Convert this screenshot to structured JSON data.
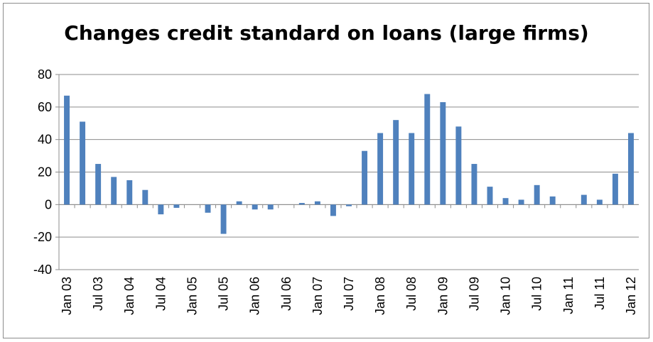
{
  "chart_data": {
    "type": "bar",
    "title": "Changes credit standard on loans (large firms)",
    "xlabel": "",
    "ylabel": "",
    "ylim": [
      -40,
      80
    ],
    "yticks": [
      80,
      60,
      40,
      20,
      0,
      -20,
      -40
    ],
    "grid": true,
    "legend": "none",
    "bar_color": "#4f81bd",
    "x_tick_labels": [
      "Jan 03",
      "Jul 03",
      "Jan 04",
      "Jul 04",
      "Jan 05",
      "Jul 05",
      "Jan 06",
      "Jul 06",
      "Jan 07",
      "Jul 07",
      "Jan 08",
      "Jul 08",
      "Jan 09",
      "Jul 09",
      "Jan 10",
      "Jul 10",
      "Jan 11",
      "Jul 11",
      "Jan 12"
    ],
    "categories": [
      "Jan 03",
      "Apr 03",
      "Jul 03",
      "Oct 03",
      "Jan 04",
      "Apr 04",
      "Jul 04",
      "Oct 04",
      "Jan 05",
      "Apr 05",
      "Jul 05",
      "Oct 05",
      "Jan 06",
      "Apr 06",
      "Jul 06",
      "Oct 06",
      "Jan 07",
      "Apr 07",
      "Jul 07",
      "Oct 07",
      "Jan 08",
      "Apr 08",
      "Jul 08",
      "Oct 08",
      "Jan 09",
      "Apr 09",
      "Jul 09",
      "Oct 09",
      "Jan 10",
      "Apr 10",
      "Jul 10",
      "Oct 10",
      "Jan 11",
      "Apr 11",
      "Jul 11",
      "Oct 11",
      "Jan 12"
    ],
    "values": [
      67,
      51,
      25,
      17,
      15,
      9,
      -6,
      -2,
      0,
      -5,
      -18,
      2,
      -3,
      -3,
      0,
      1,
      2,
      -7,
      -1,
      33,
      44,
      52,
      44,
      68,
      63,
      48,
      25,
      11,
      4,
      3,
      12,
      5,
      0,
      6,
      3,
      19,
      44
    ]
  }
}
